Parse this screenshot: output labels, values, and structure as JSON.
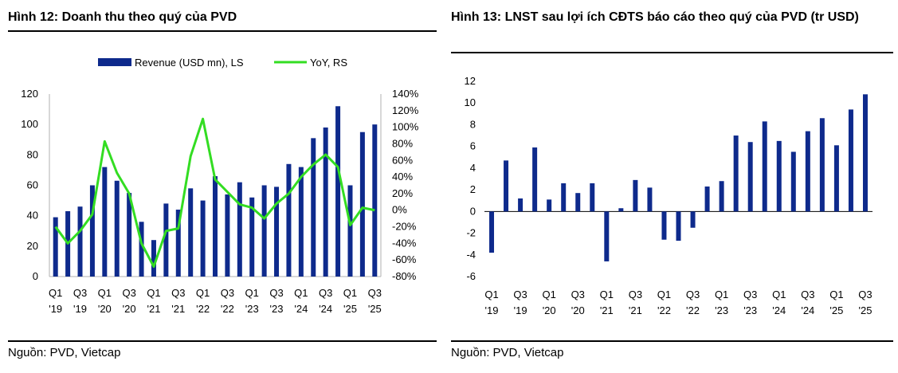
{
  "colors": {
    "bar": "#0e2a8c",
    "line": "#33dd22",
    "axis": "#b0b0b0"
  },
  "left": {
    "title": "Hình 12: Doanh thu theo quý của PVD",
    "source": "Nguồn: PVD, Vietcap",
    "legend": {
      "bar_label": "Revenue (USD mn), LS",
      "line_label": "YoY, RS"
    }
  },
  "right": {
    "title": "Hình 13: LNST sau lợi ích CĐTS báo cáo theo quý của PVD (tr USD)",
    "source": "Nguồn: PVD, Vietcap"
  },
  "chart_data": [
    {
      "type": "bar",
      "title": "Hình 12: Doanh thu theo quý của PVD",
      "categories": [
        "Q1'19",
        "Q2'19",
        "Q3'19",
        "Q4'19",
        "Q1'20",
        "Q2'20",
        "Q3'20",
        "Q4'20",
        "Q1'21",
        "Q2'21",
        "Q3'21",
        "Q4'21",
        "Q1'22",
        "Q2'22",
        "Q3'22",
        "Q4'22",
        "Q1'23",
        "Q2'23",
        "Q3'23",
        "Q4'23",
        "Q1'24",
        "Q2'24",
        "Q3'24",
        "Q4'24",
        "Q1'25",
        "Q2'25",
        "Q3'25"
      ],
      "x_tick_labels": [
        {
          "index": 0,
          "line1": "Q1",
          "line2": "'19"
        },
        {
          "index": 2,
          "line1": "Q3",
          "line2": "'19"
        },
        {
          "index": 4,
          "line1": "Q1",
          "line2": "'20"
        },
        {
          "index": 6,
          "line1": "Q3",
          "line2": "'20"
        },
        {
          "index": 8,
          "line1": "Q1",
          "line2": "'21"
        },
        {
          "index": 10,
          "line1": "Q3",
          "line2": "'21"
        },
        {
          "index": 12,
          "line1": "Q1",
          "line2": "'22"
        },
        {
          "index": 14,
          "line1": "Q3",
          "line2": "'22"
        },
        {
          "index": 16,
          "line1": "Q1",
          "line2": "'23"
        },
        {
          "index": 18,
          "line1": "Q3",
          "line2": "'23"
        },
        {
          "index": 20,
          "line1": "Q1",
          "line2": "'24"
        },
        {
          "index": 22,
          "line1": "Q3",
          "line2": "'24"
        },
        {
          "index": 24,
          "line1": "Q1",
          "line2": "'25"
        },
        {
          "index": 26,
          "line1": "Q3",
          "line2": "'25"
        }
      ],
      "series": [
        {
          "name": "Revenue (USD mn), LS",
          "kind": "bar",
          "axis": "left",
          "values": [
            39,
            43,
            46,
            60,
            72,
            63,
            55,
            36,
            24,
            48,
            44,
            58,
            50,
            66,
            54,
            62,
            52,
            60,
            59,
            74,
            72,
            91,
            98,
            112,
            60,
            95,
            100
          ]
        },
        {
          "name": "YoY, RS",
          "kind": "line",
          "axis": "right",
          "values": [
            -20,
            -40,
            -25,
            -5,
            83,
            45,
            20,
            -40,
            -68,
            -25,
            -22,
            65,
            110,
            37,
            22,
            7,
            3,
            -10,
            8,
            20,
            40,
            55,
            67,
            52,
            -18,
            3,
            0
          ]
        }
      ],
      "y_left": {
        "min": 0,
        "max": 120,
        "ticks": [
          "0",
          "20",
          "40",
          "60",
          "80",
          "100",
          "120"
        ]
      },
      "y_right": {
        "min": -80,
        "max": 140,
        "ticks": [
          "-80%",
          "-60%",
          "-40%",
          "-20%",
          "0%",
          "20%",
          "40%",
          "60%",
          "80%",
          "100%",
          "120%",
          "140%"
        ]
      },
      "legend_position": "top"
    },
    {
      "type": "bar",
      "title": "Hình 13: LNST sau lợi ích CĐTS báo cáo theo quý của PVD (tr USD)",
      "categories": [
        "Q1'19",
        "Q2'19",
        "Q3'19",
        "Q4'19",
        "Q1'20",
        "Q2'20",
        "Q3'20",
        "Q4'20",
        "Q1'21",
        "Q2'21",
        "Q3'21",
        "Q4'21",
        "Q1'22",
        "Q2'22",
        "Q3'22",
        "Q4'22",
        "Q1'23",
        "Q2'23",
        "Q3'23",
        "Q4'23",
        "Q1'24",
        "Q2'24",
        "Q3'24",
        "Q4'24",
        "Q1'25",
        "Q2'25",
        "Q3'25"
      ],
      "x_tick_labels": [
        {
          "index": 0,
          "line1": "Q1",
          "line2": "'19"
        },
        {
          "index": 2,
          "line1": "Q3",
          "line2": "'19"
        },
        {
          "index": 4,
          "line1": "Q1",
          "line2": "'20"
        },
        {
          "index": 6,
          "line1": "Q3",
          "line2": "'20"
        },
        {
          "index": 8,
          "line1": "Q1",
          "line2": "'21"
        },
        {
          "index": 10,
          "line1": "Q3",
          "line2": "'21"
        },
        {
          "index": 12,
          "line1": "Q1",
          "line2": "'22"
        },
        {
          "index": 14,
          "line1": "Q3",
          "line2": "'22"
        },
        {
          "index": 16,
          "line1": "Q1",
          "line2": "'23"
        },
        {
          "index": 18,
          "line1": "Q3",
          "line2": "'23"
        },
        {
          "index": 20,
          "line1": "Q1",
          "line2": "'24"
        },
        {
          "index": 22,
          "line1": "Q3",
          "line2": "'24"
        },
        {
          "index": 24,
          "line1": "Q1",
          "line2": "'25"
        },
        {
          "index": 26,
          "line1": "Q3",
          "line2": "'25"
        }
      ],
      "values": [
        -3.8,
        4.7,
        1.2,
        5.9,
        1.1,
        2.6,
        1.7,
        2.6,
        -4.6,
        0.3,
        2.9,
        2.2,
        -2.6,
        -2.7,
        -1.5,
        2.3,
        2.8,
        7.0,
        6.4,
        8.3,
        6.5,
        5.5,
        7.4,
        8.6,
        6.1,
        9.4,
        10.8
      ],
      "y_axis": {
        "min": -6,
        "max": 12,
        "ticks": [
          "-6",
          "-4",
          "-2",
          "0",
          "2",
          "4",
          "6",
          "8",
          "10",
          "12"
        ]
      }
    }
  ]
}
